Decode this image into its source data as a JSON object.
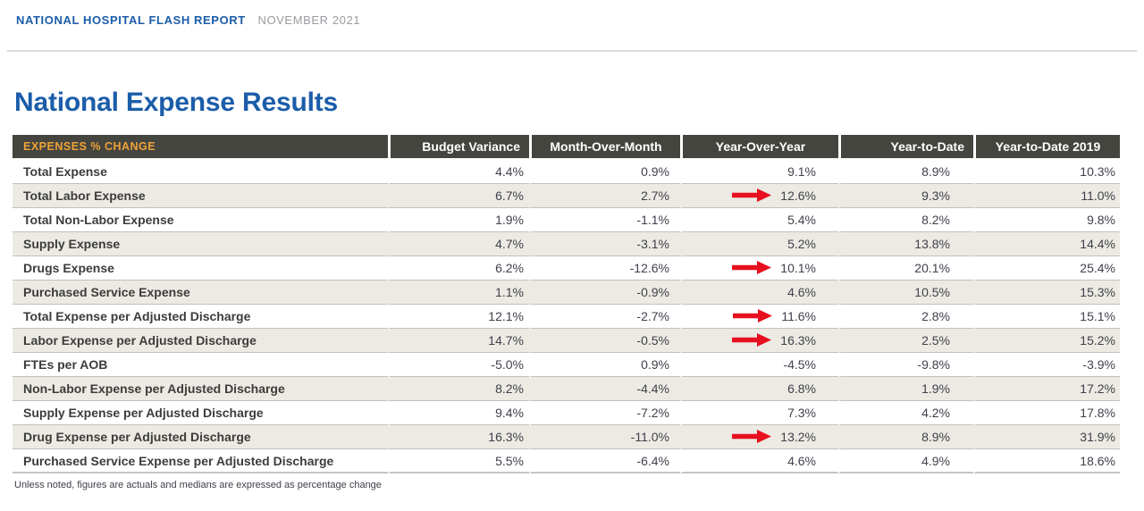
{
  "report_header": {
    "title": "NATIONAL HOSPITAL FLASH REPORT",
    "date": "NOVEMBER 2021"
  },
  "page": {
    "heading": "National Expense Results",
    "footnote": "Unless noted, figures are actuals and medians are expressed as percentage change"
  },
  "table": {
    "corner_label": "EXPENSES % CHANGE",
    "columns": [
      "Budget Variance",
      "Month-Over-Month",
      "Year-Over-Year",
      "Year-to-Date",
      "Year-to-Date 2019"
    ],
    "rows": [
      {
        "label": "Total Expense",
        "values": [
          "4.4%",
          "0.9%",
          "9.1%",
          "8.9%",
          "10.3%"
        ],
        "arrow": false
      },
      {
        "label": "Total Labor Expense",
        "values": [
          "6.7%",
          "2.7%",
          "12.6%",
          "9.3%",
          "11.0%"
        ],
        "arrow": true
      },
      {
        "label": "Total Non-Labor Expense",
        "values": [
          "1.9%",
          "-1.1%",
          "5.4%",
          "8.2%",
          "9.8%"
        ],
        "arrow": false
      },
      {
        "label": "Supply Expense",
        "values": [
          "4.7%",
          "-3.1%",
          "5.2%",
          "13.8%",
          "14.4%"
        ],
        "arrow": false
      },
      {
        "label": "Drugs Expense",
        "values": [
          "6.2%",
          "-12.6%",
          "10.1%",
          "20.1%",
          "25.4%"
        ],
        "arrow": true
      },
      {
        "label": "Purchased Service Expense",
        "values": [
          "1.1%",
          "-0.9%",
          "4.6%",
          "10.5%",
          "15.3%"
        ],
        "arrow": false
      },
      {
        "label": "Total Expense per Adjusted Discharge",
        "values": [
          "12.1%",
          "-2.7%",
          "11.6%",
          "2.8%",
          "15.1%"
        ],
        "arrow": true
      },
      {
        "label": "Labor Expense per Adjusted Discharge",
        "values": [
          "14.7%",
          "-0.5%",
          "16.3%",
          "2.5%",
          "15.2%"
        ],
        "arrow": true
      },
      {
        "label": "FTEs per AOB",
        "values": [
          "-5.0%",
          "0.9%",
          "-4.5%",
          "-9.8%",
          "-3.9%"
        ],
        "arrow": false
      },
      {
        "label": "Non-Labor Expense per Adjusted Discharge",
        "values": [
          "8.2%",
          "-4.4%",
          "6.8%",
          "1.9%",
          "17.2%"
        ],
        "arrow": false
      },
      {
        "label": "Supply Expense per Adjusted Discharge",
        "values": [
          "9.4%",
          "-7.2%",
          "7.3%",
          "4.2%",
          "17.8%"
        ],
        "arrow": false
      },
      {
        "label": "Drug Expense per Adjusted Discharge",
        "values": [
          "16.3%",
          "-11.0%",
          "13.2%",
          "8.9%",
          "31.9%"
        ],
        "arrow": true
      },
      {
        "label": "Purchased Service Expense per Adjusted Discharge",
        "values": [
          "5.5%",
          "-6.4%",
          "4.6%",
          "4.9%",
          "18.6%"
        ],
        "arrow": false
      }
    ]
  },
  "icons": {
    "highlight_arrow": "red-right-arrow-icon"
  },
  "colors": {
    "brand_blue": "#1B5DA9",
    "header_bg": "#454540",
    "accent_gold": "#EEA236",
    "row_alt_bg": "#ECEAE3",
    "arrow_red": "#E8101F",
    "date_gray": "#9B9BA1"
  }
}
